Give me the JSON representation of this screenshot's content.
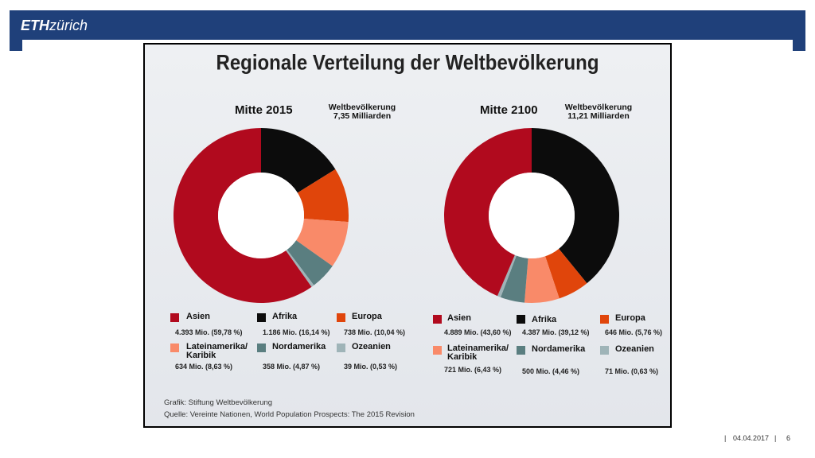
{
  "header": {
    "logo_bold": "ETH",
    "logo_text": "zürich"
  },
  "slide": {
    "title": "Regionale Verteilung der Weltbevölkerung",
    "source_line1": "Grafik: Stiftung Weltbevölkerung",
    "source_line2": "Quelle: Vereinte Nationen, World Population Prospects: The 2015 Revision"
  },
  "chart_data": [
    {
      "type": "pie",
      "title": "Mitte 2015",
      "subtitle_line1": "Weltbevölkerung",
      "subtitle_line2": "7,35 Milliarden",
      "categories": [
        "Asien",
        "Afrika",
        "Europa",
        "Lateinamerika/ Karibik",
        "Nordamerika",
        "Ozeanien"
      ],
      "values": [
        59.78,
        16.14,
        10.04,
        8.63,
        4.87,
        0.53
      ],
      "value_labels": [
        "4.393 Mio. (59,78 %)",
        "1.186 Mio. (16,14 %)",
        "738 Mio. (10,04 %)",
        "634 Mio. (8,63 %)",
        "358 Mio. (4,87 %)",
        "39 Mio. (0,53 %)"
      ],
      "colors": [
        "#b10a1e",
        "#0c0c0c",
        "#e0450b",
        "#f98a69",
        "#5a7e80",
        "#9fb4b8"
      ]
    },
    {
      "type": "pie",
      "title": "Mitte 2100",
      "subtitle_line1": "Weltbevölkerung",
      "subtitle_line2": "11,21 Milliarden",
      "categories": [
        "Asien",
        "Afrika",
        "Europa",
        "Lateinamerika/ Karibik",
        "Nordamerika",
        "Ozeanien"
      ],
      "values": [
        43.6,
        39.12,
        5.76,
        6.43,
        4.46,
        0.63
      ],
      "value_labels": [
        "4.889 Mio. (43,60 %)",
        "4.387 Mio. (39,12 %)",
        "646 Mio. (5,76 %)",
        "721 Mio. (6,43 %)",
        "500 Mio. (4,46 %)",
        "71 Mio. (0,63 %)"
      ],
      "colors": [
        "#b10a1e",
        "#0c0c0c",
        "#e0450b",
        "#f98a69",
        "#5a7e80",
        "#9fb4b8"
      ]
    }
  ],
  "footer": {
    "date": "04.04.2017",
    "page": "6",
    "sep": "|"
  }
}
